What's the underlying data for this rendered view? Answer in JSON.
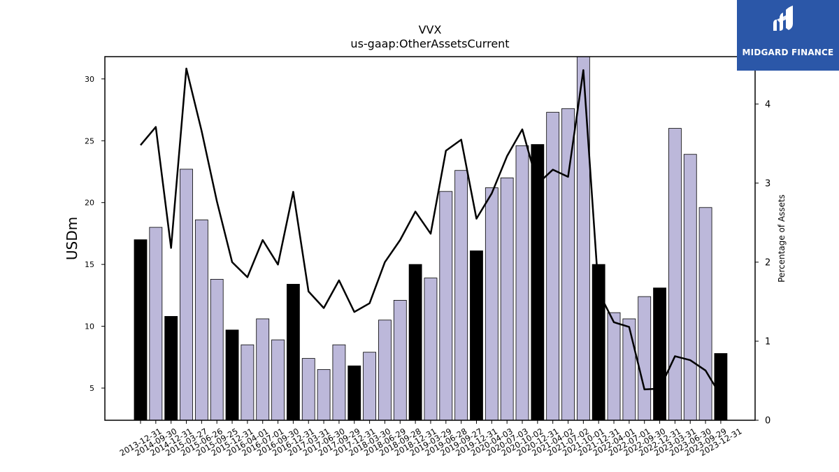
{
  "chart_data": {
    "type": "bar",
    "title": "VVX",
    "subtitle": "us-gaap:OtherAssetsCurrent",
    "ylabel": "USDm",
    "y2label": "Percentage of Assets",
    "ylim": [
      2.4,
      31.8
    ],
    "y2lim": [
      0,
      4.6
    ],
    "yticks": [
      5,
      10,
      15,
      20,
      25,
      30
    ],
    "y2ticks": [
      0,
      1,
      2,
      3,
      4
    ],
    "grid": false,
    "colors": {
      "annual_bar": "#000000",
      "quarterly_bar": "#bcb8da",
      "line": "#000000"
    },
    "categories": [
      "2013-12-31",
      "2014-09-30",
      "2014-12-31",
      "2015-03-27",
      "2015-06-26",
      "2015-09-25",
      "2015-12-31",
      "2016-04-01",
      "2016-07-01",
      "2016-09-30",
      "2016-12-31",
      "2017-03-31",
      "2017-06-30",
      "2017-09-29",
      "2017-12-31",
      "2018-03-30",
      "2018-06-29",
      "2018-09-28",
      "2018-12-31",
      "2019-03-29",
      "2019-06-28",
      "2019-09-27",
      "2019-12-31",
      "2020-04-03",
      "2020-07-03",
      "2020-10-02",
      "2020-12-31",
      "2021-04-02",
      "2021-07-02",
      "2021-10-01",
      "2021-12-31",
      "2022-04-01",
      "2022-07-01",
      "2022-09-30",
      "2022-12-31",
      "2023-03-31",
      "2023-06-30",
      "2023-09-29",
      "2023-12-31"
    ],
    "series": [
      {
        "kind": "bar",
        "values": [
          17.0,
          18.0,
          10.8,
          22.7,
          18.6,
          13.8,
          9.7,
          8.5,
          10.6,
          8.9,
          13.4,
          7.4,
          6.5,
          8.5,
          6.8,
          7.9,
          10.5,
          12.1,
          15.0,
          13.9,
          20.9,
          22.6,
          16.1,
          21.2,
          22.0,
          24.6,
          24.7,
          27.3,
          27.6,
          31.8,
          15.0,
          11.1,
          10.6,
          12.4,
          13.1,
          26.0,
          23.9,
          19.6,
          7.8
        ],
        "annual": [
          true,
          false,
          true,
          false,
          false,
          false,
          true,
          false,
          false,
          false,
          true,
          false,
          false,
          false,
          true,
          false,
          false,
          false,
          true,
          false,
          false,
          false,
          true,
          false,
          false,
          false,
          true,
          false,
          false,
          false,
          true,
          false,
          false,
          false,
          true,
          false,
          false,
          false,
          true
        ]
      },
      {
        "kind": "line",
        "axis": "right",
        "values": [
          3.48,
          3.71,
          2.18,
          4.45,
          3.66,
          2.77,
          2.0,
          1.81,
          2.28,
          1.97,
          2.89,
          1.63,
          1.42,
          1.77,
          1.37,
          1.48,
          2.0,
          2.28,
          2.64,
          2.36,
          3.41,
          3.55,
          2.55,
          2.87,
          3.34,
          3.68,
          2.99,
          3.17,
          3.08,
          4.43,
          1.62,
          1.24,
          1.18,
          0.39,
          0.4,
          0.81,
          0.76,
          0.63,
          0.31
        ]
      }
    ]
  },
  "logo": {
    "text": "MIDGARD FINANCE"
  }
}
